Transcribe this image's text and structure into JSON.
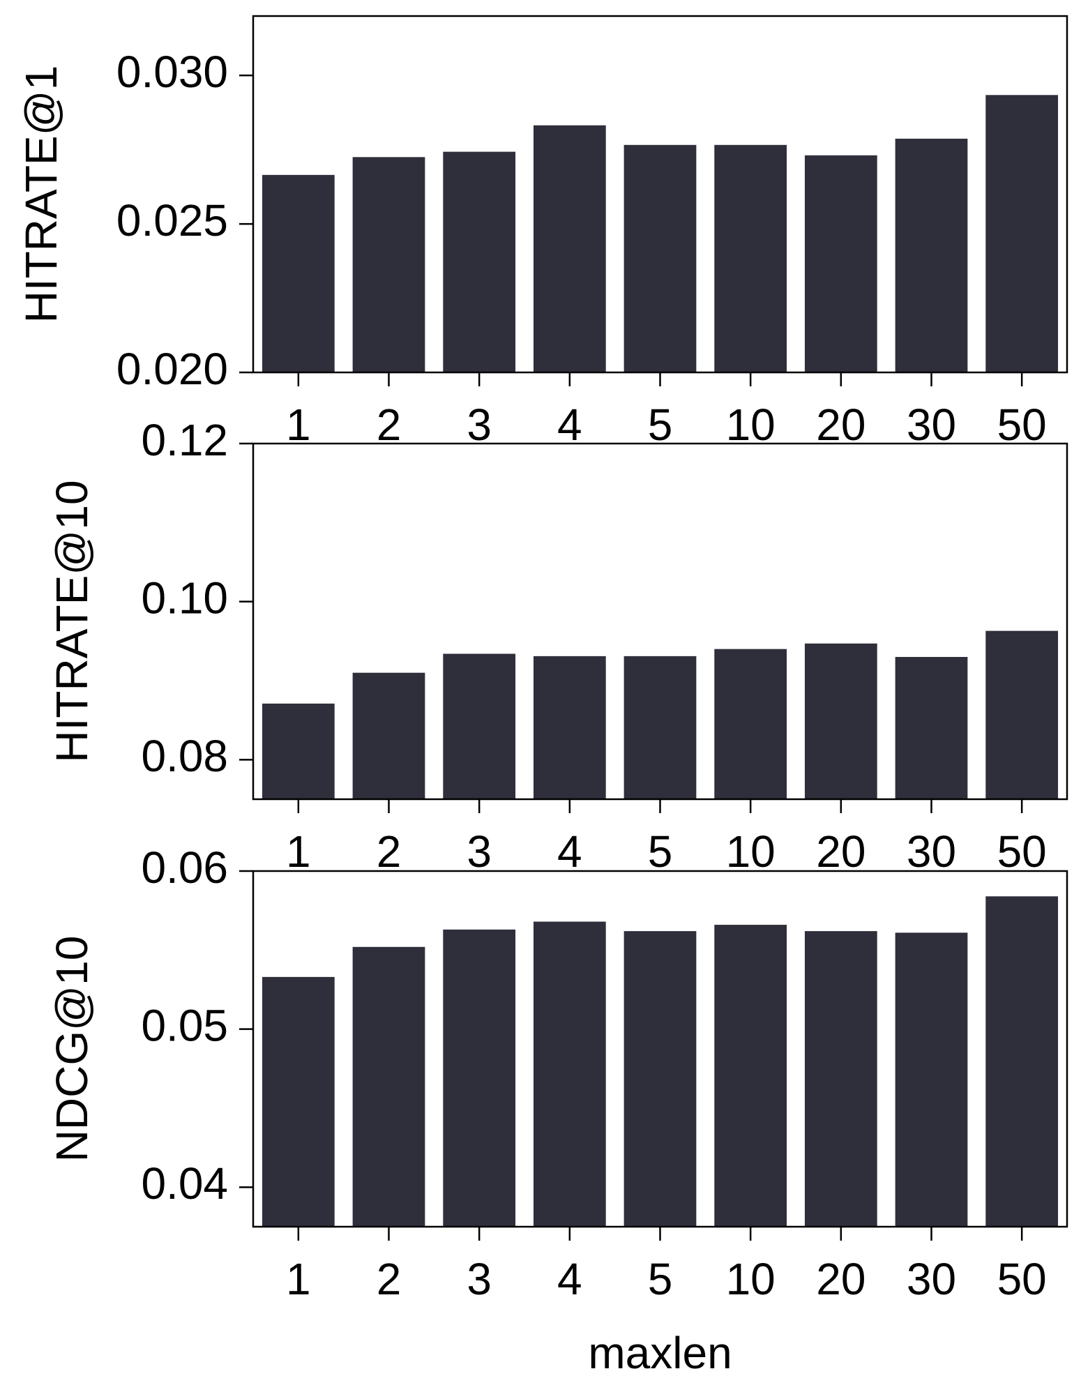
{
  "chart_data": [
    {
      "type": "bar",
      "ylabel": "HITRATE@1",
      "categories": [
        "1",
        "2",
        "3",
        "4",
        "5",
        "10",
        "20",
        "30",
        "50"
      ],
      "values": [
        0.02665,
        0.02725,
        0.02743,
        0.02832,
        0.02766,
        0.02766,
        0.02731,
        0.02787,
        0.02934
      ],
      "color": "#2f2e3b",
      "ylim": [
        0.02,
        0.032
      ],
      "yticks": [
        {
          "value": 0.02,
          "label": "0.020"
        },
        {
          "value": 0.025,
          "label": "0.025"
        },
        {
          "value": 0.03,
          "label": "0.030"
        }
      ]
    },
    {
      "type": "bar",
      "ylabel": "HITRATE@10",
      "categories": [
        "1",
        "2",
        "3",
        "4",
        "5",
        "10",
        "20",
        "30",
        "50"
      ],
      "values": [
        0.0871,
        0.091,
        0.0934,
        0.0931,
        0.0931,
        0.094,
        0.0947,
        0.093,
        0.0963
      ],
      "color": "#2f2e3b",
      "ylim": [
        0.075,
        0.12
      ],
      "yticks": [
        0.08,
        {
          "value": 0.1,
          "label": "0.10"
        },
        0.12
      ]
    },
    {
      "type": "bar",
      "ylabel": "NDCG@10",
      "xlabel": "maxlen",
      "categories": [
        "1",
        "2",
        "3",
        "4",
        "5",
        "10",
        "20",
        "30",
        "50"
      ],
      "values": [
        0.0533,
        0.0552,
        0.0563,
        0.0568,
        0.0562,
        0.0566,
        0.0562,
        0.0561,
        0.0584
      ],
      "color": "#2f2e3b",
      "ylim": [
        0.0375,
        0.06
      ],
      "yticks": [
        0.04,
        0.05,
        0.06
      ]
    }
  ]
}
